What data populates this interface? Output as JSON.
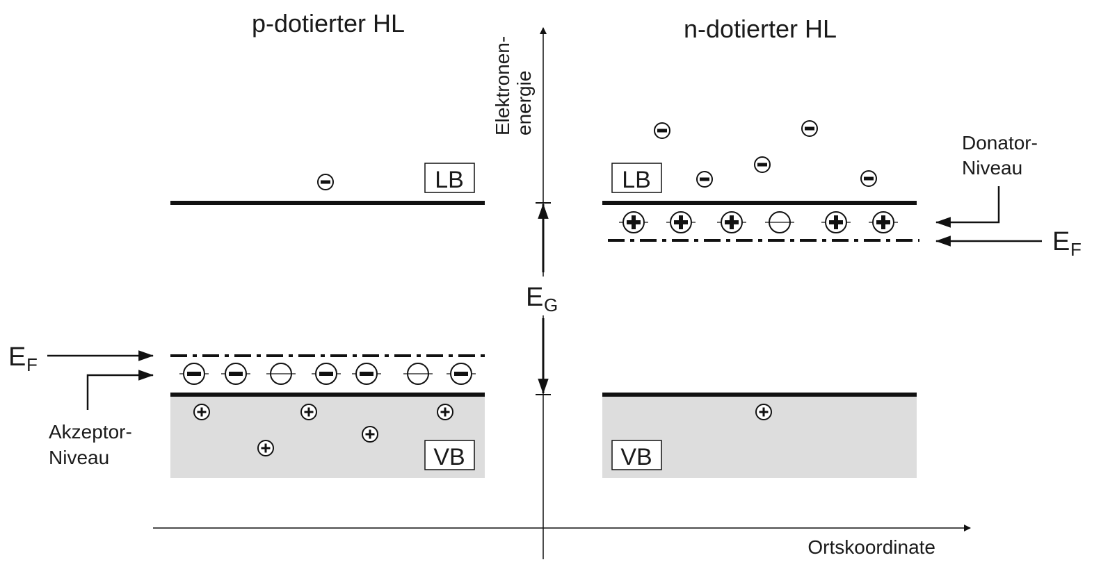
{
  "titles": {
    "left": "p-dotierter HL",
    "right": "n-dotierter HL"
  },
  "axes": {
    "y_label_line1": "Elektronen-",
    "y_label_line2": "energie",
    "x_label": "Ortskoordinate"
  },
  "bands": {
    "conduction": "LB",
    "valence": "VB"
  },
  "gap": {
    "label": "E",
    "subscript": "G"
  },
  "fermi": {
    "label": "E",
    "subscript": "F"
  },
  "levels": {
    "acceptor_line1": "Akzeptor-",
    "acceptor_line2": "Niveau",
    "donor_line1": "Donator-",
    "donor_line2": "Niveau"
  },
  "charges": {
    "electron_symbol": "minus-icon",
    "hole_symbol": "plus-icon"
  },
  "colors": {
    "line": "#111111",
    "band_fill": "#dddddd"
  }
}
